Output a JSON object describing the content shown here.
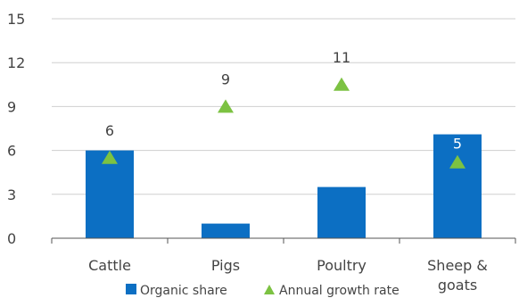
{
  "chart_data": {
    "type": "bar",
    "categories": [
      "Cattle",
      "Pigs",
      "Poultry",
      "Sheep & goats"
    ],
    "category_lines": [
      [
        "Cattle"
      ],
      [
        "Pigs"
      ],
      [
        "Poultry"
      ],
      [
        "Sheep &",
        "goats"
      ]
    ],
    "series": [
      {
        "name": "Organic share",
        "kind": "bar",
        "values": [
          6,
          1,
          3.5,
          7.1
        ],
        "color": "#0c6fc3"
      },
      {
        "name": "Annual growth rate",
        "kind": "marker",
        "marker": "triangle",
        "values": [
          5.5,
          9,
          10.5,
          5.2
        ],
        "color": "#7cc242"
      }
    ],
    "data_labels": [
      "6",
      "9",
      "11",
      "5"
    ],
    "ylim": [
      0,
      15
    ],
    "yticks": [
      0,
      3,
      6,
      9,
      12,
      15
    ],
    "grid": true,
    "legend_position": "bottom",
    "title": "",
    "xlabel": "",
    "ylabel": ""
  }
}
